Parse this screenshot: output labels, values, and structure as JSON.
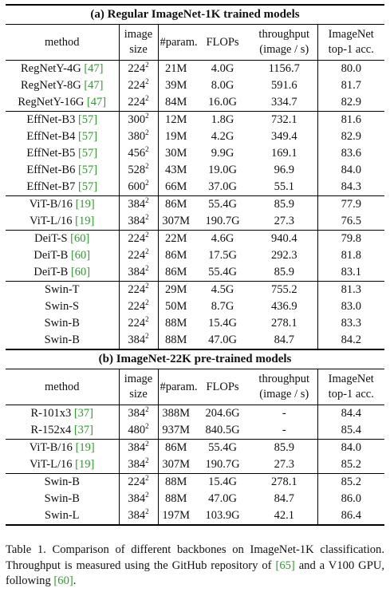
{
  "sections": [
    {
      "title": "(a) Regular ImageNet-1K trained models",
      "header": {
        "method": "method",
        "size_l1": "image",
        "size_l2": "size",
        "params": "#param.",
        "flops": "FLOPs",
        "tp_l1": "throughput",
        "tp_l2": "(image / s)",
        "acc_l1": "ImageNet",
        "acc_l2": "top-1 acc."
      },
      "groups": [
        [
          {
            "name": "RegNetY-4G",
            "cite": "[47]",
            "size": "224",
            "params": "21M",
            "flops": "4.0G",
            "tp": "1156.7",
            "acc": "80.0"
          },
          {
            "name": "RegNetY-8G",
            "cite": "[47]",
            "size": "224",
            "params": "39M",
            "flops": "8.0G",
            "tp": "591.6",
            "acc": "81.7"
          },
          {
            "name": "RegNetY-16G",
            "cite": "[47]",
            "size": "224",
            "params": "84M",
            "flops": "16.0G",
            "tp": "334.7",
            "acc": "82.9"
          }
        ],
        [
          {
            "name": "EffNet-B3",
            "cite": "[57]",
            "size": "300",
            "params": "12M",
            "flops": "1.8G",
            "tp": "732.1",
            "acc": "81.6"
          },
          {
            "name": "EffNet-B4",
            "cite": "[57]",
            "size": "380",
            "params": "19M",
            "flops": "4.2G",
            "tp": "349.4",
            "acc": "82.9"
          },
          {
            "name": "EffNet-B5",
            "cite": "[57]",
            "size": "456",
            "params": "30M",
            "flops": "9.9G",
            "tp": "169.1",
            "acc": "83.6"
          },
          {
            "name": "EffNet-B6",
            "cite": "[57]",
            "size": "528",
            "params": "43M",
            "flops": "19.0G",
            "tp": "96.9",
            "acc": "84.0"
          },
          {
            "name": "EffNet-B7",
            "cite": "[57]",
            "size": "600",
            "params": "66M",
            "flops": "37.0G",
            "tp": "55.1",
            "acc": "84.3"
          }
        ],
        [
          {
            "name": "ViT-B/16",
            "cite": "[19]",
            "size": "384",
            "params": "86M",
            "flops": "55.4G",
            "tp": "85.9",
            "acc": "77.9"
          },
          {
            "name": "ViT-L/16",
            "cite": "[19]",
            "size": "384",
            "params": "307M",
            "flops": "190.7G",
            "tp": "27.3",
            "acc": "76.5"
          }
        ],
        [
          {
            "name": "DeiT-S",
            "cite": "[60]",
            "size": "224",
            "params": "22M",
            "flops": "4.6G",
            "tp": "940.4",
            "acc": "79.8"
          },
          {
            "name": "DeiT-B",
            "cite": "[60]",
            "size": "224",
            "params": "86M",
            "flops": "17.5G",
            "tp": "292.3",
            "acc": "81.8"
          },
          {
            "name": "DeiT-B",
            "cite": "[60]",
            "size": "384",
            "params": "86M",
            "flops": "55.4G",
            "tp": "85.9",
            "acc": "83.1"
          }
        ],
        [
          {
            "name": "Swin-T",
            "cite": "",
            "size": "224",
            "params": "29M",
            "flops": "4.5G",
            "tp": "755.2",
            "acc": "81.3"
          },
          {
            "name": "Swin-S",
            "cite": "",
            "size": "224",
            "params": "50M",
            "flops": "8.7G",
            "tp": "436.9",
            "acc": "83.0"
          },
          {
            "name": "Swin-B",
            "cite": "",
            "size": "224",
            "params": "88M",
            "flops": "15.4G",
            "tp": "278.1",
            "acc": "83.3"
          },
          {
            "name": "Swin-B",
            "cite": "",
            "size": "384",
            "params": "88M",
            "flops": "47.0G",
            "tp": "84.7",
            "acc": "84.2"
          }
        ]
      ]
    },
    {
      "title": "(b) ImageNet-22K pre-trained models",
      "header": {
        "method": "method",
        "size_l1": "image",
        "size_l2": "size",
        "params": "#param.",
        "flops": "FLOPs",
        "tp_l1": "throughput",
        "tp_l2": "(image / s)",
        "acc_l1": "ImageNet",
        "acc_l2": "top-1 acc."
      },
      "groups": [
        [
          {
            "name": "R-101x3",
            "cite": "[37]",
            "size": "384",
            "params": "388M",
            "flops": "204.6G",
            "tp": "-",
            "acc": "84.4"
          },
          {
            "name": "R-152x4",
            "cite": "[37]",
            "size": "480",
            "params": "937M",
            "flops": "840.5G",
            "tp": "-",
            "acc": "85.4"
          }
        ],
        [
          {
            "name": "ViT-B/16",
            "cite": "[19]",
            "size": "384",
            "params": "86M",
            "flops": "55.4G",
            "tp": "85.9",
            "acc": "84.0"
          },
          {
            "name": "ViT-L/16",
            "cite": "[19]",
            "size": "384",
            "params": "307M",
            "flops": "190.7G",
            "tp": "27.3",
            "acc": "85.2"
          }
        ],
        [
          {
            "name": "Swin-B",
            "cite": "",
            "size": "224",
            "params": "88M",
            "flops": "15.4G",
            "tp": "278.1",
            "acc": "85.2"
          },
          {
            "name": "Swin-B",
            "cite": "",
            "size": "384",
            "params": "88M",
            "flops": "47.0G",
            "tp": "84.7",
            "acc": "86.0"
          },
          {
            "name": "Swin-L",
            "cite": "",
            "size": "384",
            "params": "197M",
            "flops": "103.9G",
            "tp": "42.1",
            "acc": "86.4"
          }
        ]
      ]
    }
  ],
  "size_exponent": "2",
  "caption": {
    "part1": "Table 1. Comparison of different backbones on ImageNet-1K classification.  Throughput is measured using the GitHub repository of ",
    "cite1": "[65]",
    "part2": " and a V100 GPU, following ",
    "cite2": "[60]",
    "part3": "."
  }
}
